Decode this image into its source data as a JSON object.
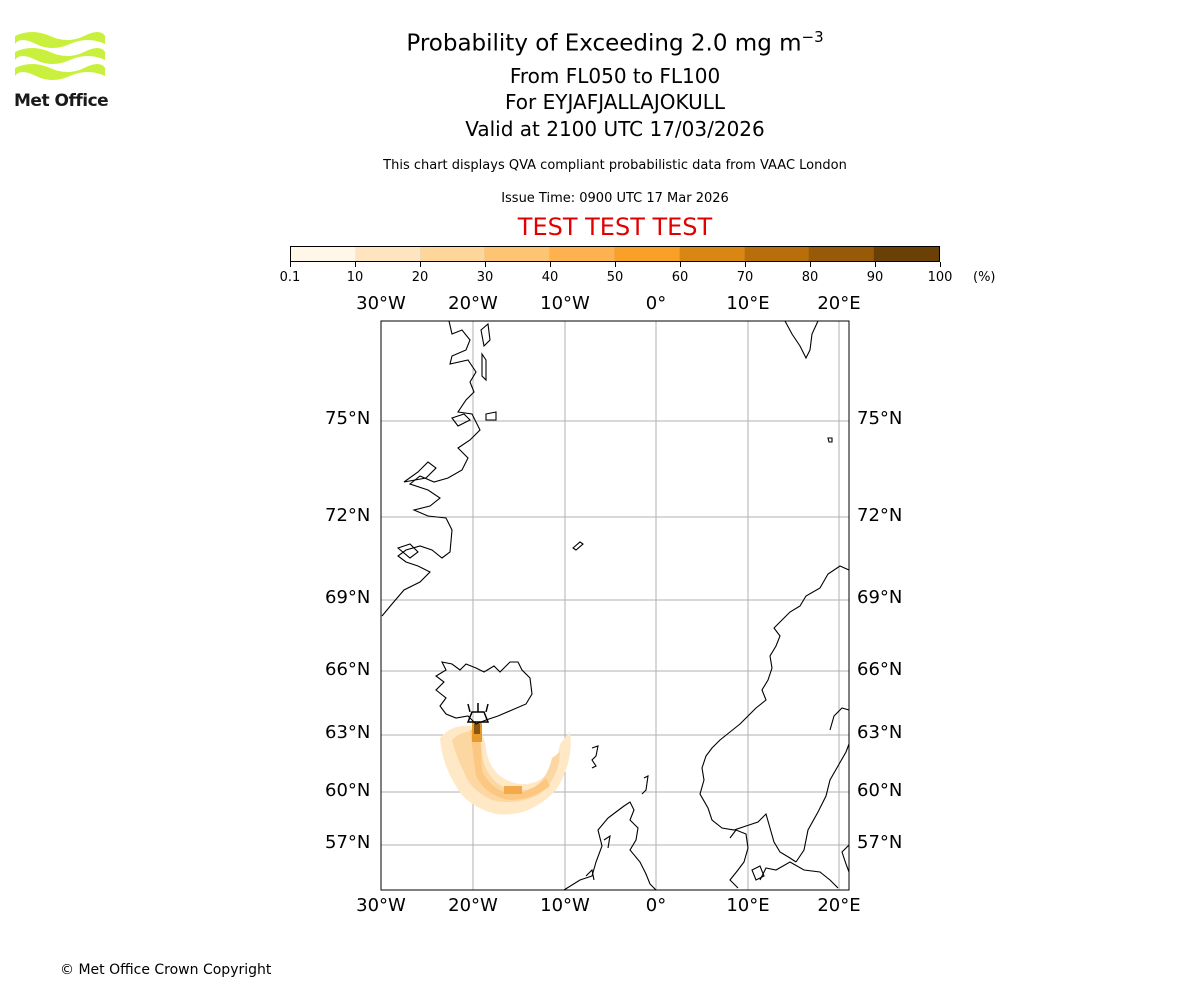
{
  "logo": {
    "name": "Met Office",
    "color": "#c8f03c"
  },
  "header": {
    "title_main": "Probability of Exceeding 2.0 mg m",
    "title_exp": "−3",
    "levels": "From FL050 to FL100",
    "volcano": "For EYJAFJALLAJOKULL",
    "valid": "Valid at 2100 UTC 17/03/2026",
    "subtitle": "This chart displays QVA compliant probabilistic data from VAAC London",
    "issue": "Issue Time: 0900 UTC 17 Mar 2026",
    "test_banner": "TEST TEST TEST",
    "test_color": "#e00000"
  },
  "colorbar": {
    "ticks": [
      "0.1",
      "10",
      "20",
      "30",
      "40",
      "50",
      "60",
      "70",
      "80",
      "90",
      "100"
    ],
    "unit": "(%)",
    "colors": [
      "#fff7e8",
      "#fee5bf",
      "#fed69a",
      "#fdc474",
      "#fdb14f",
      "#f9a028",
      "#d98712",
      "#b86f0b",
      "#975a08",
      "#6b4006"
    ]
  },
  "map": {
    "lon_labels": [
      "30°W",
      "20°W",
      "10°W",
      "0°",
      "10°E",
      "20°E"
    ],
    "lat_labels": [
      "75°N",
      "72°N",
      "69°N",
      "66°N",
      "63°N",
      "60°N",
      "57°N"
    ],
    "volcano_icon": "volcano-icon"
  },
  "footer": {
    "copyright": "© Met Office Crown Copyright"
  }
}
